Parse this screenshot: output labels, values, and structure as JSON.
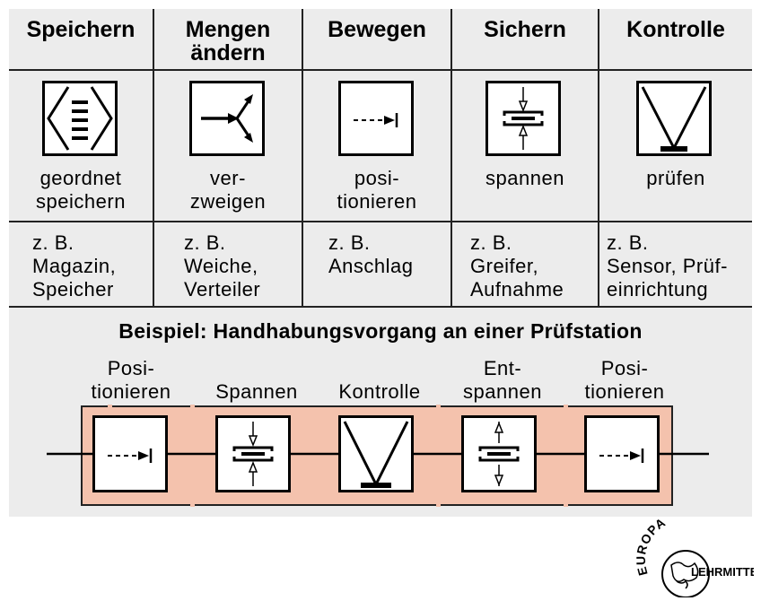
{
  "functions": [
    {
      "heading": "Speichern",
      "symbol": "store-symbol",
      "caption": "geordnet\nspeichern",
      "example": "z. B.\nMagazin,\nSpeicher"
    },
    {
      "heading": "Mengen\nändern",
      "symbol": "branch-symbol",
      "caption": "ver-\nzweigen",
      "example": "z. B.\nWeiche,\nVerteiler"
    },
    {
      "heading": "Bewegen",
      "symbol": "position-symbol",
      "caption": "posi-\ntionieren",
      "example": "z. B.\nAnschlag"
    },
    {
      "heading": "Sichern",
      "symbol": "clamp-symbol",
      "caption": "spannen",
      "example": "z. B.\nGreifer,\nAufnahme"
    },
    {
      "heading": "Kontrolle",
      "symbol": "check-symbol",
      "caption": "prüfen",
      "example": "z. B.\nSensor, Prüf-\neinrichtung"
    }
  ],
  "example_process": {
    "title": "Beispiel: Handhabungsvorgang an einer Prüfstation",
    "steps": [
      {
        "label": "Posi-\ntionieren",
        "symbol": "position-symbol"
      },
      {
        "label": "Spannen",
        "symbol": "clamp-symbol"
      },
      {
        "label": "Kontrolle",
        "symbol": "check-symbol"
      },
      {
        "label": "Ent-\nspannen",
        "symbol": "unclamp-symbol"
      },
      {
        "label": "Posi-\ntionieren",
        "symbol": "position-symbol"
      }
    ]
  },
  "logo": {
    "top_text": "EUROPA",
    "bottom_text": "LEHRMITTEL"
  },
  "colors": {
    "panel": "#ececec",
    "station": "#f4c2ad",
    "lines": "#222222"
  }
}
